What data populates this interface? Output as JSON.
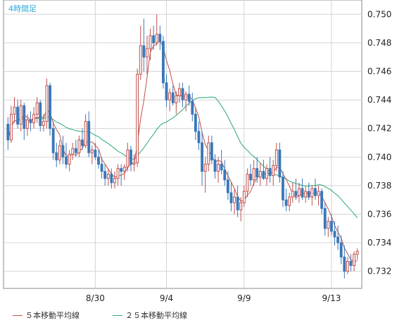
{
  "timeframe_label": "4時間足",
  "legend": [
    {
      "label": "５本移動平均線",
      "color": "#c0504d"
    },
    {
      "label": "２５本移動平均線",
      "color": "#2aa876"
    }
  ],
  "colors": {
    "up": "#c0504d",
    "down": "#3a78b8",
    "grid": "#d4d4d4",
    "axis": "#888888"
  },
  "chart_data": {
    "type": "candlestick",
    "y_ticks": [
      "0.732",
      "0.734",
      "0.736",
      "0.738",
      "0.740",
      "0.742",
      "0.744",
      "0.746",
      "0.748",
      "0.750"
    ],
    "ylim": [
      0.7308,
      0.751
    ],
    "x_ticks": [
      {
        "label": "8/30",
        "index": 27
      },
      {
        "label": "9/4",
        "index": 49
      },
      {
        "label": "9/9",
        "index": 73
      },
      {
        "label": "9/13",
        "index": 100
      }
    ],
    "candles": [
      [
        0.7423,
        0.7428,
        0.7405,
        0.7412
      ],
      [
        0.7412,
        0.7436,
        0.741,
        0.743
      ],
      [
        0.743,
        0.7442,
        0.7424,
        0.7435
      ],
      [
        0.7435,
        0.744,
        0.742,
        0.7423
      ],
      [
        0.7423,
        0.744,
        0.7418,
        0.7436
      ],
      [
        0.7436,
        0.7438,
        0.7412,
        0.742
      ],
      [
        0.742,
        0.743,
        0.7415,
        0.7426
      ],
      [
        0.7426,
        0.7432,
        0.7418,
        0.7424
      ],
      [
        0.7424,
        0.7435,
        0.742,
        0.743
      ],
      [
        0.743,
        0.7442,
        0.7424,
        0.7438
      ],
      [
        0.7438,
        0.744,
        0.7418,
        0.7422
      ],
      [
        0.7422,
        0.743,
        0.7418,
        0.7425
      ],
      [
        0.7425,
        0.7455,
        0.742,
        0.745
      ],
      [
        0.745,
        0.7452,
        0.7415,
        0.742
      ],
      [
        0.742,
        0.7425,
        0.7398,
        0.7403
      ],
      [
        0.7403,
        0.741,
        0.7393,
        0.7398
      ],
      [
        0.7398,
        0.7412,
        0.7395,
        0.7408
      ],
      [
        0.7408,
        0.7415,
        0.7395,
        0.74
      ],
      [
        0.74,
        0.741,
        0.7392,
        0.7395
      ],
      [
        0.7395,
        0.7405,
        0.739,
        0.7402
      ],
      [
        0.7402,
        0.741,
        0.7398,
        0.7406
      ],
      [
        0.7406,
        0.7412,
        0.74,
        0.7403
      ],
      [
        0.7403,
        0.7415,
        0.74,
        0.7412
      ],
      [
        0.7412,
        0.742,
        0.7405,
        0.7408
      ],
      [
        0.7408,
        0.743,
        0.7406,
        0.7425
      ],
      [
        0.7425,
        0.7432,
        0.74,
        0.7403
      ],
      [
        0.7403,
        0.7408,
        0.7395,
        0.7405
      ],
      [
        0.7405,
        0.741,
        0.7398,
        0.74
      ],
      [
        0.74,
        0.7405,
        0.7392,
        0.7395
      ],
      [
        0.7395,
        0.74,
        0.7385,
        0.739
      ],
      [
        0.739,
        0.7395,
        0.738,
        0.7385
      ],
      [
        0.7385,
        0.7392,
        0.738,
        0.7388
      ],
      [
        0.7388,
        0.7392,
        0.7378,
        0.7382
      ],
      [
        0.7382,
        0.739,
        0.7378,
        0.7385
      ],
      [
        0.7385,
        0.7395,
        0.738,
        0.7392
      ],
      [
        0.7392,
        0.7395,
        0.738,
        0.739
      ],
      [
        0.739,
        0.7395,
        0.7384,
        0.7393
      ],
      [
        0.7393,
        0.741,
        0.739,
        0.7405
      ],
      [
        0.7405,
        0.7408,
        0.739,
        0.7395
      ],
      [
        0.7395,
        0.7402,
        0.739,
        0.7396
      ],
      [
        0.7396,
        0.7462,
        0.7393,
        0.7458
      ],
      [
        0.7458,
        0.7492,
        0.7454,
        0.7478
      ],
      [
        0.7478,
        0.7497,
        0.746,
        0.747
      ],
      [
        0.747,
        0.7485,
        0.7458,
        0.7476
      ],
      [
        0.7476,
        0.749,
        0.7468,
        0.7485
      ],
      [
        0.7485,
        0.7492,
        0.7475,
        0.748
      ],
      [
        0.748,
        0.75,
        0.7478,
        0.7486
      ],
      [
        0.7486,
        0.7492,
        0.7475,
        0.7481
      ],
      [
        0.7481,
        0.7485,
        0.7448,
        0.7452
      ],
      [
        0.7452,
        0.7458,
        0.7435,
        0.744
      ],
      [
        0.744,
        0.7448,
        0.7432,
        0.7445
      ],
      [
        0.7445,
        0.745,
        0.7436,
        0.7438
      ],
      [
        0.7438,
        0.7446,
        0.743,
        0.7443
      ],
      [
        0.7443,
        0.7452,
        0.7438,
        0.7448
      ],
      [
        0.7448,
        0.7452,
        0.7435,
        0.744
      ],
      [
        0.744,
        0.7446,
        0.7432,
        0.7444
      ],
      [
        0.7444,
        0.745,
        0.7436,
        0.7439
      ],
      [
        0.7439,
        0.7445,
        0.7425,
        0.743
      ],
      [
        0.743,
        0.7435,
        0.7412,
        0.7418
      ],
      [
        0.7418,
        0.7425,
        0.7405,
        0.741
      ],
      [
        0.741,
        0.7418,
        0.738,
        0.739
      ],
      [
        0.739,
        0.74,
        0.7375,
        0.7395
      ],
      [
        0.7395,
        0.7415,
        0.739,
        0.741
      ],
      [
        0.741,
        0.7415,
        0.7395,
        0.7398
      ],
      [
        0.7398,
        0.7402,
        0.7385,
        0.739
      ],
      [
        0.739,
        0.74,
        0.7382,
        0.7395
      ],
      [
        0.7395,
        0.7405,
        0.7388,
        0.7391
      ],
      [
        0.7391,
        0.7398,
        0.738,
        0.7384
      ],
      [
        0.7384,
        0.739,
        0.737,
        0.7375
      ],
      [
        0.7375,
        0.7382,
        0.7362,
        0.7368
      ],
      [
        0.7368,
        0.7378,
        0.736,
        0.7372
      ],
      [
        0.7372,
        0.738,
        0.7358,
        0.7363
      ],
      [
        0.7363,
        0.7372,
        0.7355,
        0.7368
      ],
      [
        0.7368,
        0.738,
        0.7365,
        0.7376
      ],
      [
        0.7376,
        0.7392,
        0.7372,
        0.7388
      ],
      [
        0.7388,
        0.7395,
        0.738,
        0.7384
      ],
      [
        0.7384,
        0.7398,
        0.738,
        0.7392
      ],
      [
        0.7392,
        0.74,
        0.7382,
        0.7386
      ],
      [
        0.7386,
        0.7396,
        0.738,
        0.739
      ],
      [
        0.739,
        0.7398,
        0.7384,
        0.7385
      ],
      [
        0.7385,
        0.7395,
        0.738,
        0.7392
      ],
      [
        0.7392,
        0.74,
        0.7382,
        0.7387
      ],
      [
        0.7387,
        0.7398,
        0.738,
        0.7394
      ],
      [
        0.7394,
        0.741,
        0.739,
        0.7405
      ],
      [
        0.7405,
        0.741,
        0.7382,
        0.7386
      ],
      [
        0.7386,
        0.739,
        0.7365,
        0.737
      ],
      [
        0.737,
        0.7378,
        0.7362,
        0.7366
      ],
      [
        0.7366,
        0.7375,
        0.7362,
        0.7372
      ],
      [
        0.7372,
        0.7382,
        0.7368,
        0.7376
      ],
      [
        0.7376,
        0.7385,
        0.737,
        0.7373
      ],
      [
        0.7373,
        0.7382,
        0.7368,
        0.7378
      ],
      [
        0.7378,
        0.7385,
        0.737,
        0.7372
      ],
      [
        0.7372,
        0.738,
        0.7368,
        0.7376
      ],
      [
        0.7376,
        0.7382,
        0.737,
        0.7372
      ],
      [
        0.7372,
        0.738,
        0.7366,
        0.7378
      ],
      [
        0.7378,
        0.7385,
        0.737,
        0.7373
      ],
      [
        0.7373,
        0.738,
        0.7366,
        0.7376
      ],
      [
        0.7376,
        0.7378,
        0.736,
        0.7364
      ],
      [
        0.7364,
        0.7368,
        0.7345,
        0.735
      ],
      [
        0.735,
        0.7358,
        0.7344,
        0.7355
      ],
      [
        0.7355,
        0.736,
        0.7345,
        0.7348
      ],
      [
        0.7348,
        0.7355,
        0.7338,
        0.7344
      ],
      [
        0.7344,
        0.7352,
        0.7335,
        0.734
      ],
      [
        0.734,
        0.7345,
        0.7325,
        0.733
      ],
      [
        0.733,
        0.7338,
        0.7315,
        0.732
      ],
      [
        0.732,
        0.733,
        0.7318,
        0.7327
      ],
      [
        0.7327,
        0.7332,
        0.732,
        0.7324
      ],
      [
        0.7324,
        0.7334,
        0.732,
        0.7332
      ],
      [
        0.7332,
        0.7336,
        0.7328,
        0.7334
      ]
    ]
  }
}
